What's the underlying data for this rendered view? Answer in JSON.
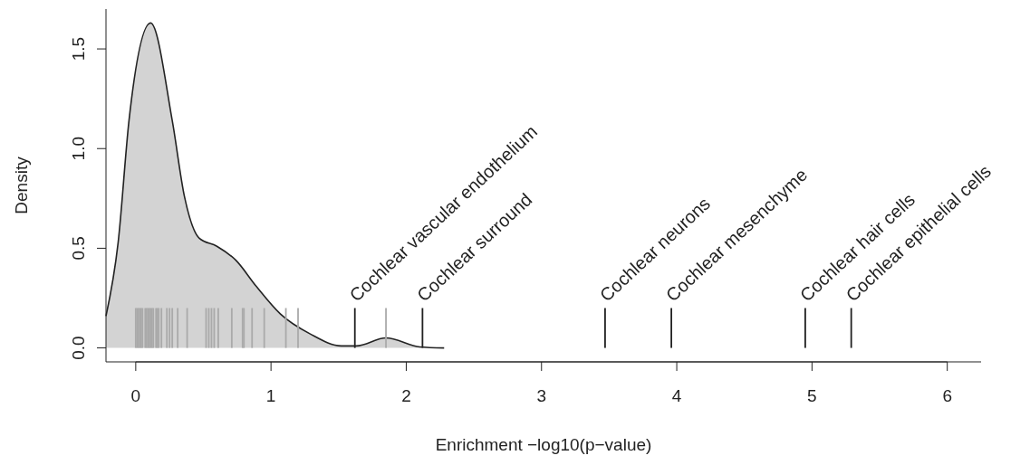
{
  "chart_data": {
    "type": "area",
    "xlabel": "Enrichment −log10(p−value)",
    "ylabel": "Density",
    "xlim": [
      -0.22,
      6.25
    ],
    "ylim": [
      -0.07,
      1.7
    ],
    "xticks": [
      0,
      1,
      2,
      3,
      4,
      5,
      6
    ],
    "yticks": [
      {
        "value": 0,
        "label": "0.0"
      },
      0.5,
      {
        "value": 1,
        "label": "1.0"
      },
      1.5
    ],
    "series": [
      {
        "color": "#d3d3d3",
        "x": [
          -0.22,
          -0.13,
          -0.05,
          0.11,
          0.27,
          0.36,
          0.47,
          0.6,
          0.74,
          0.89,
          1.07,
          1.29,
          1.52,
          1.63,
          1.85,
          2.1,
          2.28
        ],
        "values": [
          0.16,
          0.53,
          1.14,
          1.63,
          1.14,
          0.76,
          0.55,
          0.51,
          0.44,
          0.31,
          0.17,
          0.07,
          0.01,
          0.01,
          0.05,
          0.005,
          0
        ]
      },
      {
        "type": "bar",
        "color": "#aaaaaa",
        "x": [
          0.0,
          0.01,
          0.02,
          0.03,
          0.04,
          0.05,
          0.07,
          0.08,
          0.09,
          0.1,
          0.11,
          0.12,
          0.13,
          0.15,
          0.16,
          0.17,
          0.19,
          0.23,
          0.25,
          0.27,
          0.31,
          0.38,
          0.52,
          0.54,
          0.56,
          0.58,
          0.61,
          0.71,
          0.79,
          0.8,
          0.86,
          0.95,
          1.11,
          1.2,
          1.85
        ],
        "values": [
          0.2,
          0.2,
          0.2,
          0.2,
          0.2,
          0.2,
          0.2,
          0.2,
          0.2,
          0.2,
          0.2,
          0.2,
          0.2,
          0.2,
          0.2,
          0.2,
          0.2,
          0.2,
          0.2,
          0.2,
          0.2,
          0.2,
          0.2,
          0.2,
          0.2,
          0.2,
          0.2,
          0.2,
          0.2,
          0.2,
          0.2,
          0.2,
          0.2,
          0.2,
          0.2
        ]
      },
      {
        "type": "bar",
        "color": "#222222",
        "x": [
          1.62,
          2.12,
          3.47,
          3.96,
          4.95,
          5.29
        ],
        "values": [
          0.2,
          0.2,
          0.2,
          0.2,
          0.2,
          0.2
        ]
      }
    ],
    "annotations": [
      {
        "text": "Cochlear vascular endothelium",
        "x": 1.62,
        "y": 0.2
      },
      {
        "text": "Cochlear surround",
        "x": 2.12,
        "y": 0.2
      },
      {
        "text": "Cochlear neurons",
        "x": 3.47,
        "y": 0.2
      },
      {
        "text": "Cochlear mesenchyme",
        "x": 3.96,
        "y": 0.2
      },
      {
        "text": "Cochlear hair cells",
        "x": 4.95,
        "y": 0.2
      },
      {
        "text": "Cochlear epithelial cells",
        "x": 5.29,
        "y": 0.2
      }
    ]
  }
}
